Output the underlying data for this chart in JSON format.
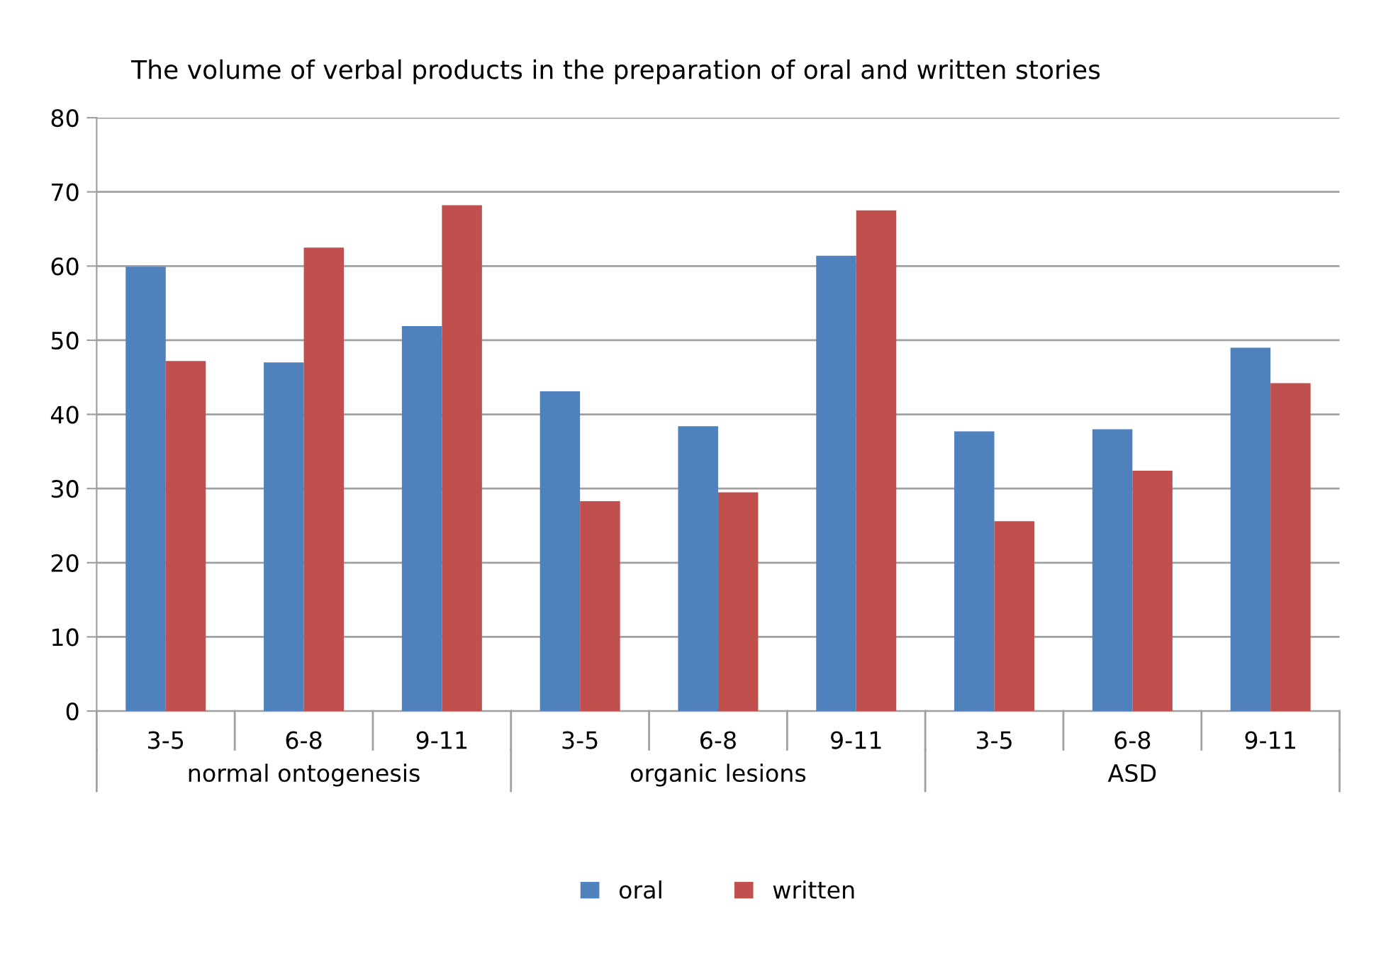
{
  "chart_data": {
    "type": "bar",
    "title": "The volume of verbal products in the preparation of oral and written stories",
    "categories": [
      "3-5",
      "6-8",
      "9-11",
      "3-5",
      "6-8",
      "9-11",
      "3-5",
      "6-8",
      "9-11"
    ],
    "series": [
      {
        "name": "oral",
        "color": "#4f81bd",
        "values": [
          59.9,
          47.0,
          51.9,
          43.1,
          38.4,
          61.4,
          37.7,
          38.0,
          49.0
        ]
      },
      {
        "name": "written",
        "color": "#c0504d",
        "values": [
          47.2,
          62.5,
          68.2,
          28.3,
          29.5,
          67.5,
          25.6,
          32.4,
          44.2
        ]
      }
    ],
    "annotations": [
      "normal ontogenesis",
      "organic lesions",
      "ASD"
    ],
    "ylim": [
      0,
      80
    ],
    "yticks": [
      0,
      10,
      20,
      30,
      40,
      50,
      60,
      70,
      80
    ],
    "grid": "y",
    "legend": "bottom"
  }
}
